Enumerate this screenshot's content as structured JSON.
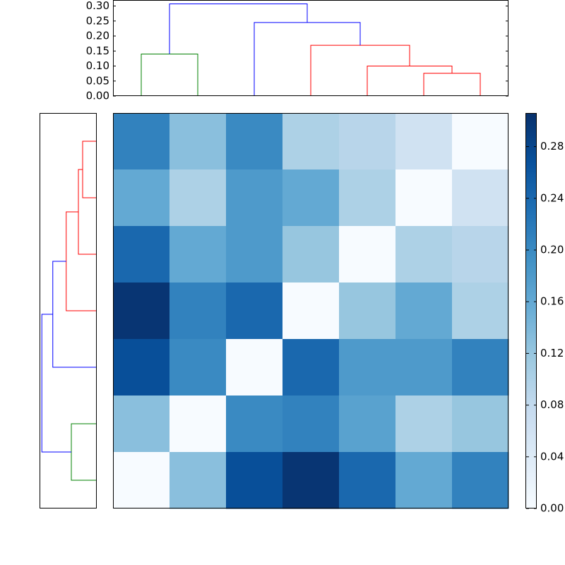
{
  "chart_data": {
    "type": "clustermap",
    "colormap": "Blues",
    "matrix": [
      [
        0.21,
        0.13,
        0.2,
        0.1,
        0.09,
        0.06,
        0.0
      ],
      [
        0.16,
        0.1,
        0.18,
        0.16,
        0.1,
        0.0,
        0.06
      ],
      [
        0.24,
        0.16,
        0.18,
        0.12,
        0.0,
        0.1,
        0.09
      ],
      [
        0.3,
        0.21,
        0.24,
        0.0,
        0.12,
        0.16,
        0.1
      ],
      [
        0.27,
        0.2,
        0.0,
        0.24,
        0.18,
        0.18,
        0.21
      ],
      [
        0.13,
        0.0,
        0.2,
        0.21,
        0.17,
        0.1,
        0.12
      ],
      [
        0.0,
        0.13,
        0.27,
        0.3,
        0.24,
        0.16,
        0.21
      ]
    ],
    "vlim": [
      0,
      0.306
    ],
    "colorbar_ticks": [
      {
        "value": 0,
        "label": "0.00"
      },
      {
        "value": 0.04,
        "label": "0.04"
      },
      {
        "value": 0.08,
        "label": "0.08"
      },
      {
        "value": 0.12,
        "label": "0.12"
      },
      {
        "value": 0.16,
        "label": "0.16"
      },
      {
        "value": 0.2,
        "label": "0.20"
      },
      {
        "value": 0.24,
        "label": "0.24"
      },
      {
        "value": 0.28,
        "label": "0.28"
      }
    ],
    "dendrogram": {
      "xlim": [
        0,
        70
      ],
      "ylim": [
        0,
        0.32
      ],
      "yticks": [
        {
          "value": 0,
          "label": "0.00"
        },
        {
          "value": 0.05,
          "label": "0.05"
        },
        {
          "value": 0.1,
          "label": "0.10"
        },
        {
          "value": 0.15,
          "label": "0.15"
        },
        {
          "value": 0.2,
          "label": "0.20"
        },
        {
          "value": 0.25,
          "label": "0.25"
        },
        {
          "value": 0.3,
          "label": "0.30"
        }
      ],
      "links": [
        {
          "color": "#008000",
          "x": [
            5,
            5,
            15,
            15
          ],
          "y": [
            0,
            0.14,
            0.14,
            0
          ]
        },
        {
          "color": "#ff0000",
          "x": [
            55,
            55,
            65,
            65
          ],
          "y": [
            0,
            0.076,
            0.076,
            0
          ]
        },
        {
          "color": "#ff0000",
          "x": [
            45,
            45,
            60,
            60
          ],
          "y": [
            0,
            0.1,
            0.1,
            0.076
          ]
        },
        {
          "color": "#ff0000",
          "x": [
            35,
            35,
            52.5,
            52.5
          ],
          "y": [
            0,
            0.169,
            0.169,
            0.1
          ]
        },
        {
          "color": "#0000ff",
          "x": [
            25,
            25,
            43.75,
            43.75
          ],
          "y": [
            0,
            0.245,
            0.245,
            0.169
          ]
        },
        {
          "color": "#0000ff",
          "x": [
            10,
            10,
            34.375,
            34.375
          ],
          "y": [
            0.14,
            0.307,
            0.307,
            0.245
          ]
        }
      ]
    }
  }
}
